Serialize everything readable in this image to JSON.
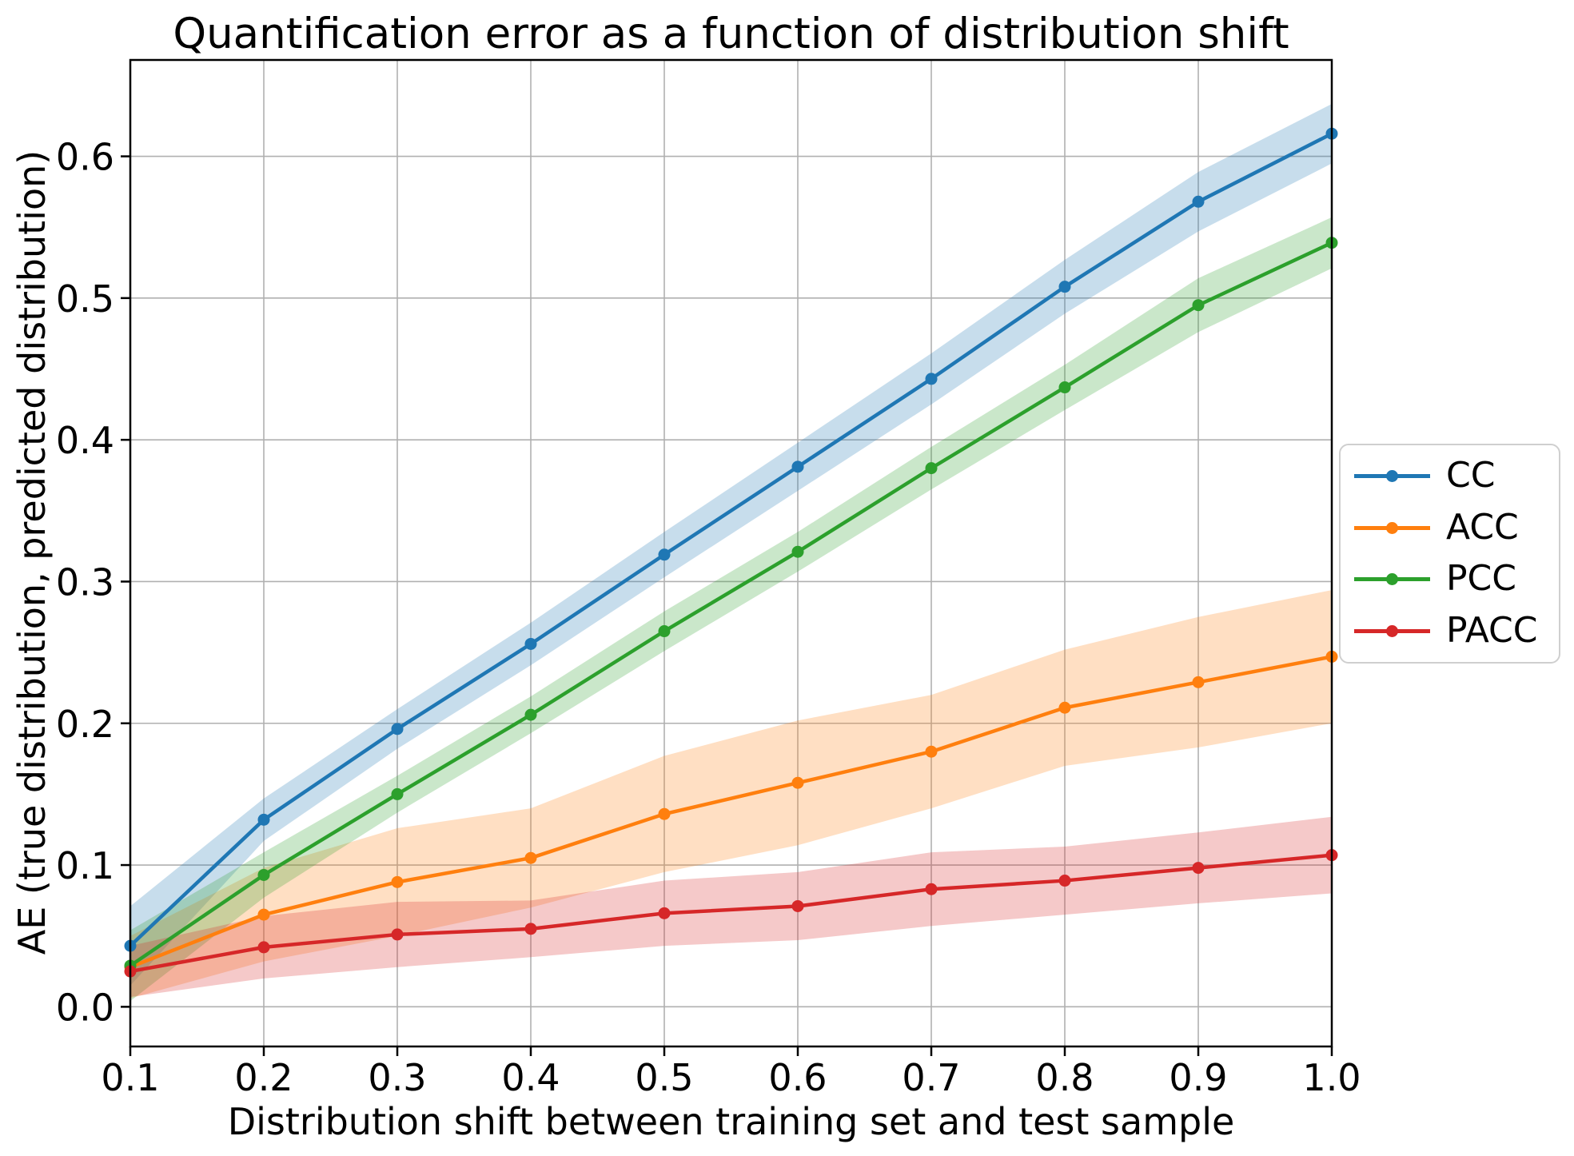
{
  "chart_data": {
    "type": "line",
    "title": "Quantification error as a function of distribution shift",
    "xlabel": "Distribution shift between training set and test sample",
    "ylabel": "AE (true distribution, predicted distribution)",
    "x": [
      0.1,
      0.2,
      0.3,
      0.4,
      0.5,
      0.6,
      0.7,
      0.8,
      0.9,
      1.0
    ],
    "x_tick_labels": [
      "0.1",
      "0.2",
      "0.3",
      "0.4",
      "0.5",
      "0.6",
      "0.7",
      "0.8",
      "0.9",
      "1.0"
    ],
    "y_ticks": [
      0.0,
      0.1,
      0.2,
      0.3,
      0.4,
      0.5,
      0.6
    ],
    "y_tick_labels": [
      "0.0",
      "0.1",
      "0.2",
      "0.3",
      "0.4",
      "0.5",
      "0.6"
    ],
    "xlim": [
      0.1,
      1.0
    ],
    "ylim": [
      -0.028,
      0.668
    ],
    "grid": true,
    "grid_color": "#b0b0b0",
    "legend_position": "right-outside",
    "band_opacity": 0.25,
    "series": [
      {
        "name": "CC",
        "color": "#1f77b4",
        "values": [
          0.043,
          0.132,
          0.196,
          0.256,
          0.319,
          0.381,
          0.443,
          0.508,
          0.568,
          0.616
        ],
        "band_halfwidth": [
          0.028,
          0.015,
          0.014,
          0.015,
          0.016,
          0.017,
          0.018,
          0.019,
          0.021,
          0.021
        ]
      },
      {
        "name": "ACC",
        "color": "#ff7f0e",
        "values": [
          0.028,
          0.065,
          0.088,
          0.105,
          0.136,
          0.158,
          0.18,
          0.211,
          0.229,
          0.247
        ],
        "band_halfwidth": [
          0.022,
          0.033,
          0.038,
          0.035,
          0.041,
          0.044,
          0.04,
          0.041,
          0.046,
          0.047
        ]
      },
      {
        "name": "PCC",
        "color": "#2ca02c",
        "values": [
          0.029,
          0.093,
          0.15,
          0.206,
          0.265,
          0.321,
          0.38,
          0.437,
          0.495,
          0.539
        ],
        "band_halfwidth": [
          0.025,
          0.016,
          0.013,
          0.013,
          0.014,
          0.014,
          0.015,
          0.016,
          0.019,
          0.018
        ]
      },
      {
        "name": "PACC",
        "color": "#d62728",
        "values": [
          0.025,
          0.042,
          0.051,
          0.055,
          0.066,
          0.071,
          0.083,
          0.089,
          0.098,
          0.107
        ],
        "band_halfwidth": [
          0.018,
          0.022,
          0.023,
          0.02,
          0.023,
          0.024,
          0.026,
          0.024,
          0.025,
          0.027
        ]
      }
    ]
  }
}
